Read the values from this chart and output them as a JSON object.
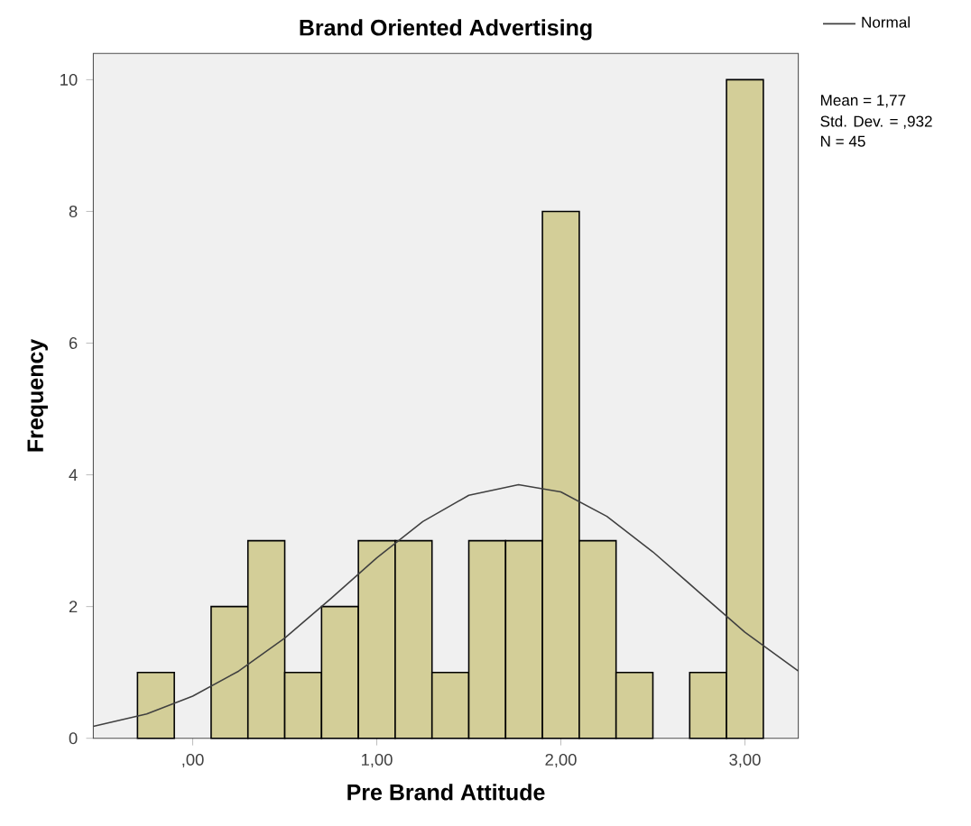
{
  "chart_data": {
    "type": "histogram",
    "title": "Brand Oriented Advertising",
    "xlabel": "Pre Brand Attitude",
    "ylabel": "Frequency",
    "bins": [
      -0.3,
      -0.1,
      0.1,
      0.3,
      0.5,
      0.7,
      0.9,
      1.1,
      1.3,
      1.5,
      1.7,
      1.9,
      2.1,
      2.3,
      2.5,
      2.7,
      2.9,
      3.1
    ],
    "values": [
      1,
      0,
      2,
      3,
      1,
      2,
      3,
      3,
      1,
      3,
      3,
      8,
      3,
      1,
      0,
      1,
      10
    ],
    "color": "#d3ce98",
    "series": [
      {
        "type": "line",
        "name": "Normal",
        "color": "#404040",
        "x": [
          -0.54,
          -0.25,
          0,
          0.25,
          0.5,
          0.75,
          1.0,
          1.25,
          1.5,
          1.77,
          2.0,
          2.25,
          2.5,
          2.75,
          3.0,
          3.29
        ],
        "values": [
          0.18,
          0.37,
          0.64,
          1.02,
          1.52,
          2.12,
          2.74,
          3.29,
          3.69,
          3.85,
          3.74,
          3.37,
          2.83,
          2.22,
          1.61,
          1.02
        ]
      }
    ],
    "xlim": [
      -0.54,
      3.29
    ],
    "ylim": [
      0,
      10.4
    ],
    "xticks": [
      {
        "value": 0,
        "label": ",00"
      },
      {
        "value": 1,
        "label": "1,00"
      },
      {
        "value": 2,
        "label": "2,00"
      },
      {
        "value": 3,
        "label": "3,00"
      }
    ],
    "yticks": [
      0,
      2,
      4,
      6,
      8,
      10
    ],
    "legend": "top right",
    "annotations": [
      "Mean = 1,77",
      "Std. Dev. = ,932",
      "N = 45"
    ]
  }
}
